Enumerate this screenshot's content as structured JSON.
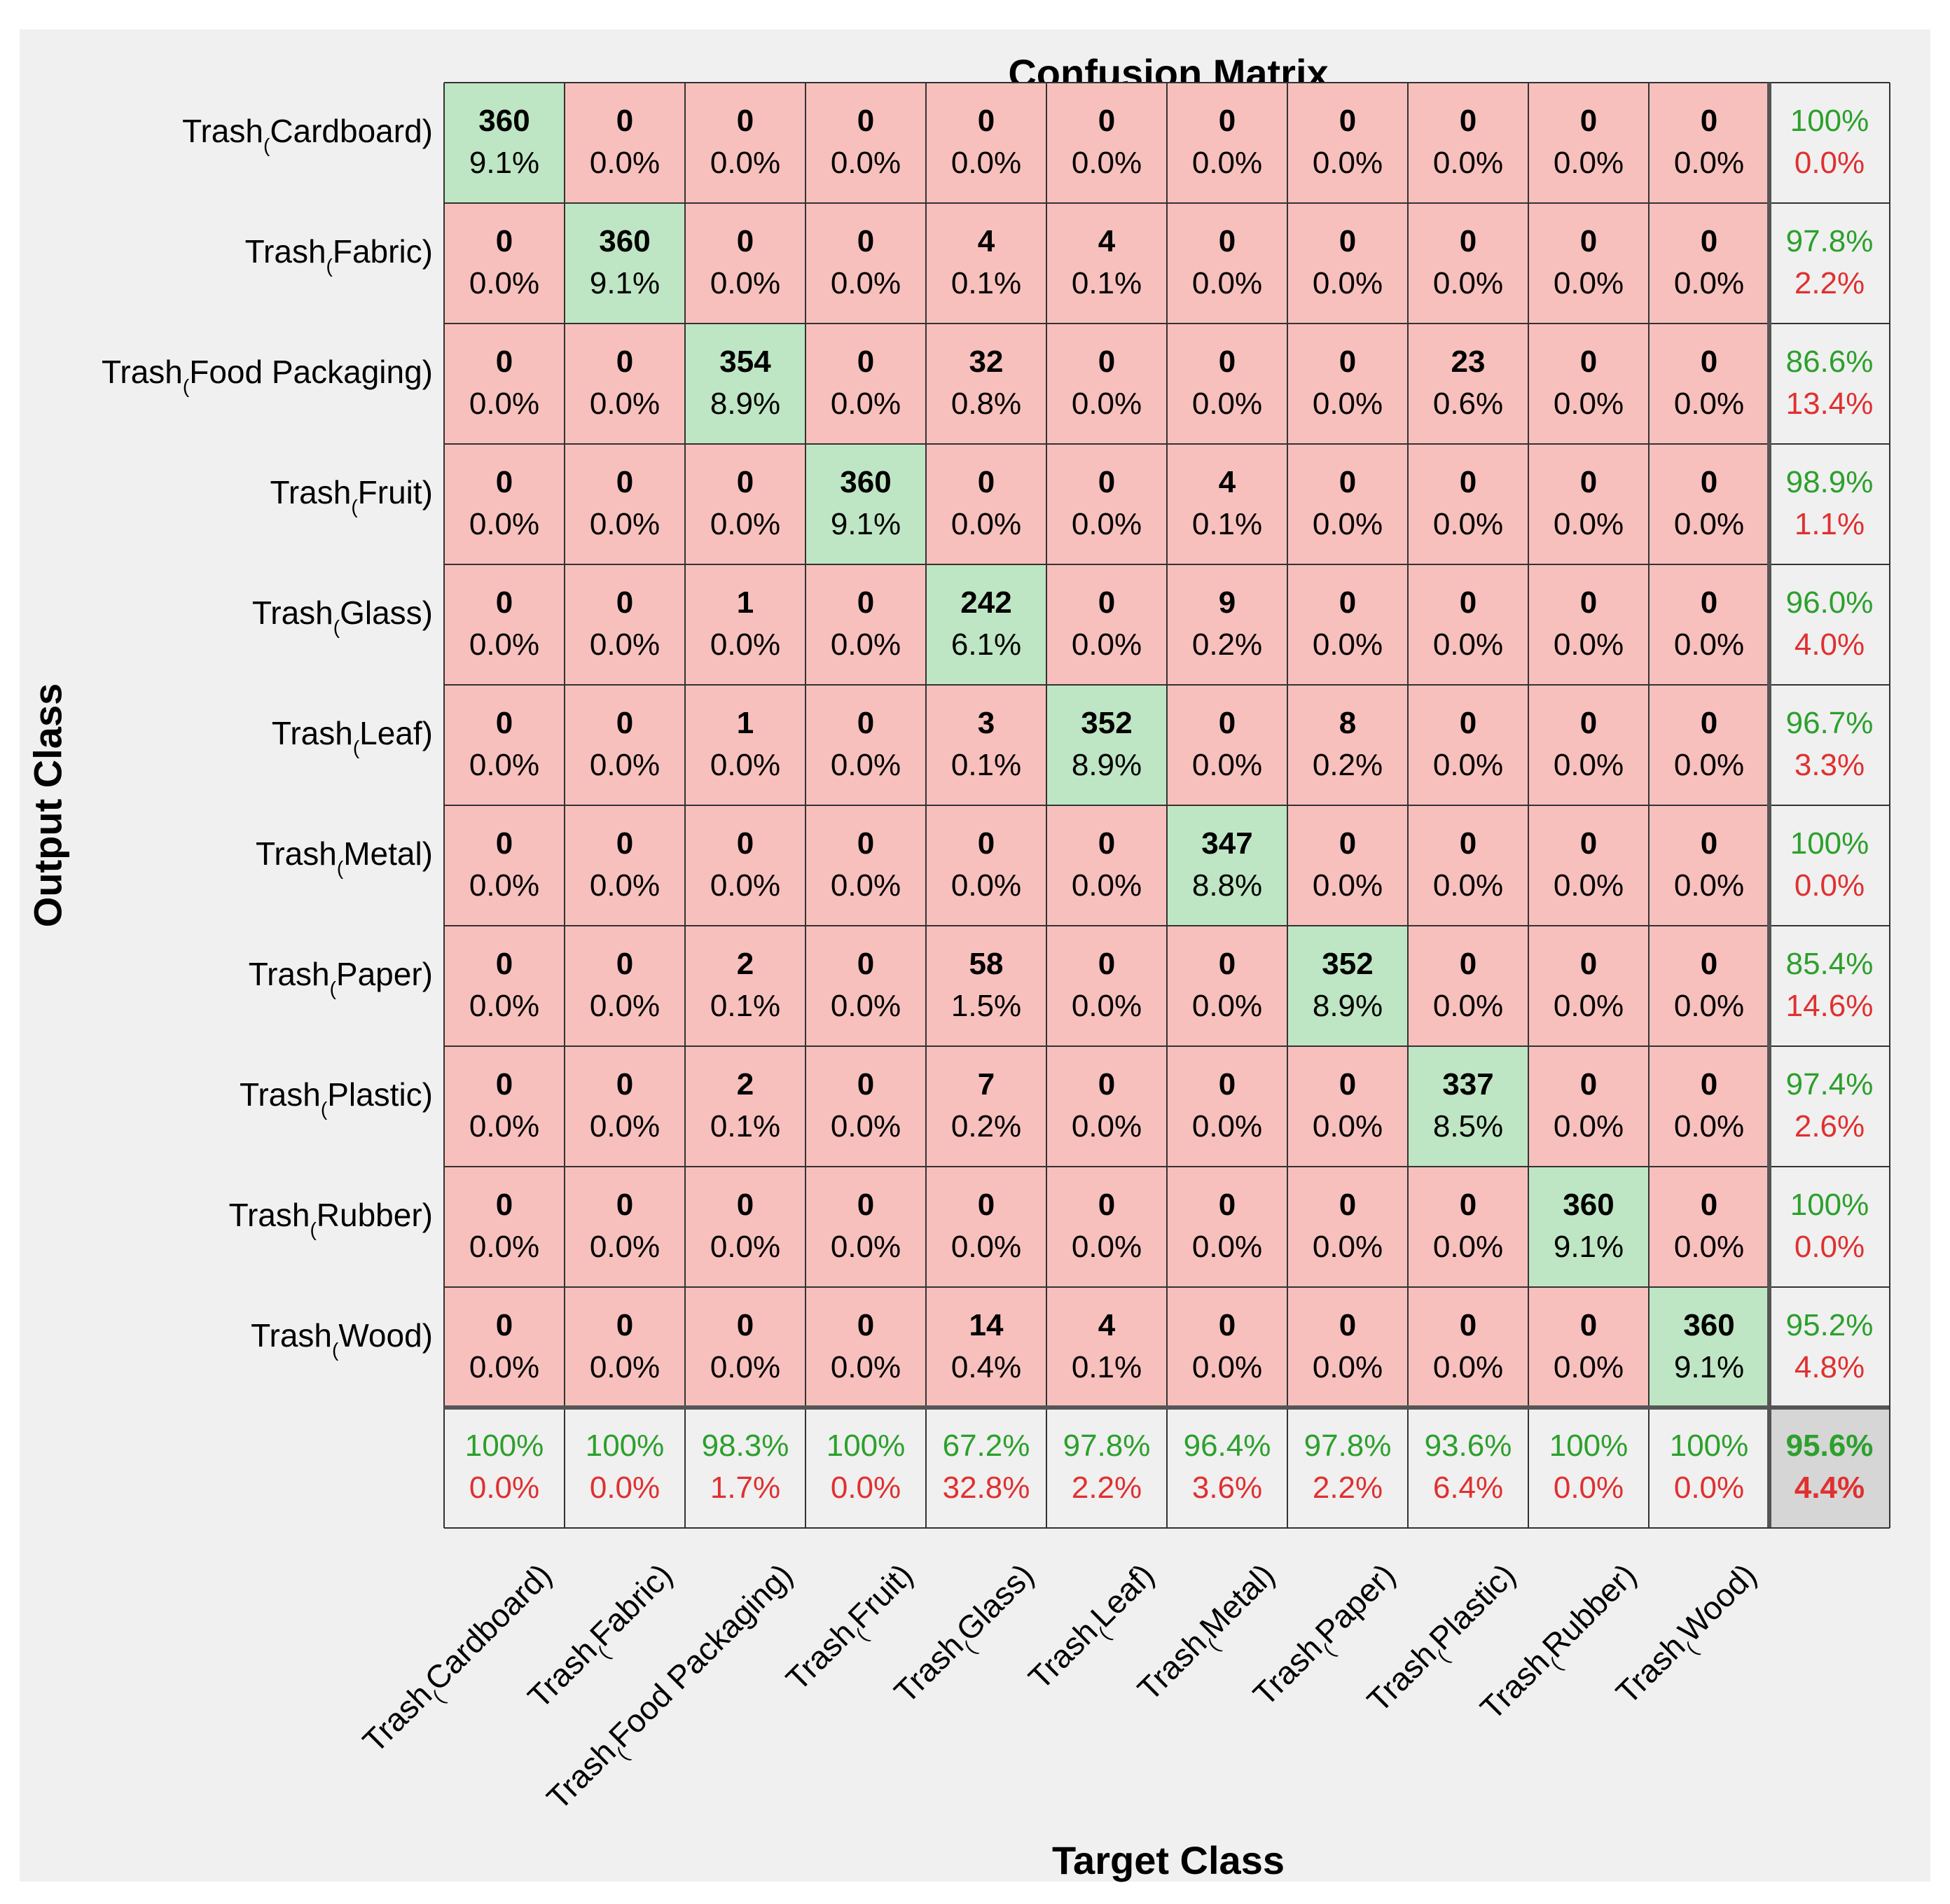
{
  "chart_data": {
    "type": "heatmap",
    "title": "Confusion Matrix",
    "xlabel": "Target Class",
    "ylabel": "Output Class",
    "class_prefix": "Trash",
    "class_subscript": "(",
    "classes": [
      "Cardboard)",
      "Fabric)",
      "Food Packaging)",
      "Fruit)",
      "Glass)",
      "Leaf)",
      "Metal)",
      "Paper)",
      "Plastic)",
      "Rubber)",
      "Wood)"
    ],
    "counts": [
      [
        360,
        0,
        0,
        0,
        0,
        0,
        0,
        0,
        0,
        0,
        0
      ],
      [
        0,
        360,
        0,
        0,
        4,
        4,
        0,
        0,
        0,
        0,
        0
      ],
      [
        0,
        0,
        354,
        0,
        32,
        0,
        0,
        0,
        23,
        0,
        0
      ],
      [
        0,
        0,
        0,
        360,
        0,
        0,
        4,
        0,
        0,
        0,
        0
      ],
      [
        0,
        0,
        1,
        0,
        242,
        0,
        9,
        0,
        0,
        0,
        0
      ],
      [
        0,
        0,
        1,
        0,
        3,
        352,
        0,
        8,
        0,
        0,
        0
      ],
      [
        0,
        0,
        0,
        0,
        0,
        0,
        347,
        0,
        0,
        0,
        0
      ],
      [
        0,
        0,
        2,
        0,
        58,
        0,
        0,
        352,
        0,
        0,
        0
      ],
      [
        0,
        0,
        2,
        0,
        7,
        0,
        0,
        0,
        337,
        0,
        0
      ],
      [
        0,
        0,
        0,
        0,
        0,
        0,
        0,
        0,
        0,
        360,
        0
      ],
      [
        0,
        0,
        0,
        0,
        14,
        4,
        0,
        0,
        0,
        0,
        360
      ]
    ],
    "percents": [
      [
        "9.1%",
        "0.0%",
        "0.0%",
        "0.0%",
        "0.0%",
        "0.0%",
        "0.0%",
        "0.0%",
        "0.0%",
        "0.0%",
        "0.0%"
      ],
      [
        "0.0%",
        "9.1%",
        "0.0%",
        "0.0%",
        "0.1%",
        "0.1%",
        "0.0%",
        "0.0%",
        "0.0%",
        "0.0%",
        "0.0%"
      ],
      [
        "0.0%",
        "0.0%",
        "8.9%",
        "0.0%",
        "0.8%",
        "0.0%",
        "0.0%",
        "0.0%",
        "0.6%",
        "0.0%",
        "0.0%"
      ],
      [
        "0.0%",
        "0.0%",
        "0.0%",
        "9.1%",
        "0.0%",
        "0.0%",
        "0.1%",
        "0.0%",
        "0.0%",
        "0.0%",
        "0.0%"
      ],
      [
        "0.0%",
        "0.0%",
        "0.0%",
        "0.0%",
        "6.1%",
        "0.0%",
        "0.2%",
        "0.0%",
        "0.0%",
        "0.0%",
        "0.0%"
      ],
      [
        "0.0%",
        "0.0%",
        "0.0%",
        "0.0%",
        "0.1%",
        "8.9%",
        "0.0%",
        "0.2%",
        "0.0%",
        "0.0%",
        "0.0%"
      ],
      [
        "0.0%",
        "0.0%",
        "0.0%",
        "0.0%",
        "0.0%",
        "0.0%",
        "8.8%",
        "0.0%",
        "0.0%",
        "0.0%",
        "0.0%"
      ],
      [
        "0.0%",
        "0.0%",
        "0.1%",
        "0.0%",
        "1.5%",
        "0.0%",
        "0.0%",
        "8.9%",
        "0.0%",
        "0.0%",
        "0.0%"
      ],
      [
        "0.0%",
        "0.0%",
        "0.1%",
        "0.0%",
        "0.2%",
        "0.0%",
        "0.0%",
        "0.0%",
        "8.5%",
        "0.0%",
        "0.0%"
      ],
      [
        "0.0%",
        "0.0%",
        "0.0%",
        "0.0%",
        "0.0%",
        "0.0%",
        "0.0%",
        "0.0%",
        "0.0%",
        "9.1%",
        "0.0%"
      ],
      [
        "0.0%",
        "0.0%",
        "0.0%",
        "0.0%",
        "0.4%",
        "0.1%",
        "0.0%",
        "0.0%",
        "0.0%",
        "0.0%",
        "9.1%"
      ]
    ],
    "row_summary": [
      [
        "100%",
        "0.0%"
      ],
      [
        "97.8%",
        "2.2%"
      ],
      [
        "86.6%",
        "13.4%"
      ],
      [
        "98.9%",
        "1.1%"
      ],
      [
        "96.0%",
        "4.0%"
      ],
      [
        "96.7%",
        "3.3%"
      ],
      [
        "100%",
        "0.0%"
      ],
      [
        "85.4%",
        "14.6%"
      ],
      [
        "97.4%",
        "2.6%"
      ],
      [
        "100%",
        "0.0%"
      ],
      [
        "95.2%",
        "4.8%"
      ]
    ],
    "col_summary": [
      [
        "100%",
        "0.0%"
      ],
      [
        "100%",
        "0.0%"
      ],
      [
        "98.3%",
        "1.7%"
      ],
      [
        "100%",
        "0.0%"
      ],
      [
        "67.2%",
        "32.8%"
      ],
      [
        "97.8%",
        "2.2%"
      ],
      [
        "96.4%",
        "3.6%"
      ],
      [
        "97.8%",
        "2.2%"
      ],
      [
        "93.6%",
        "6.4%"
      ],
      [
        "100%",
        "0.0%"
      ],
      [
        "100%",
        "0.0%"
      ]
    ],
    "overall": [
      "95.6%",
      "4.4%"
    ],
    "colors": {
      "diagonal": "#bfe6c4",
      "offdiagonal": "#f7c0bd",
      "summary": "#f0f0f0",
      "overall": "#d6d6d6",
      "correct_text": "#2ca02c",
      "error_text": "#e03030"
    }
  }
}
